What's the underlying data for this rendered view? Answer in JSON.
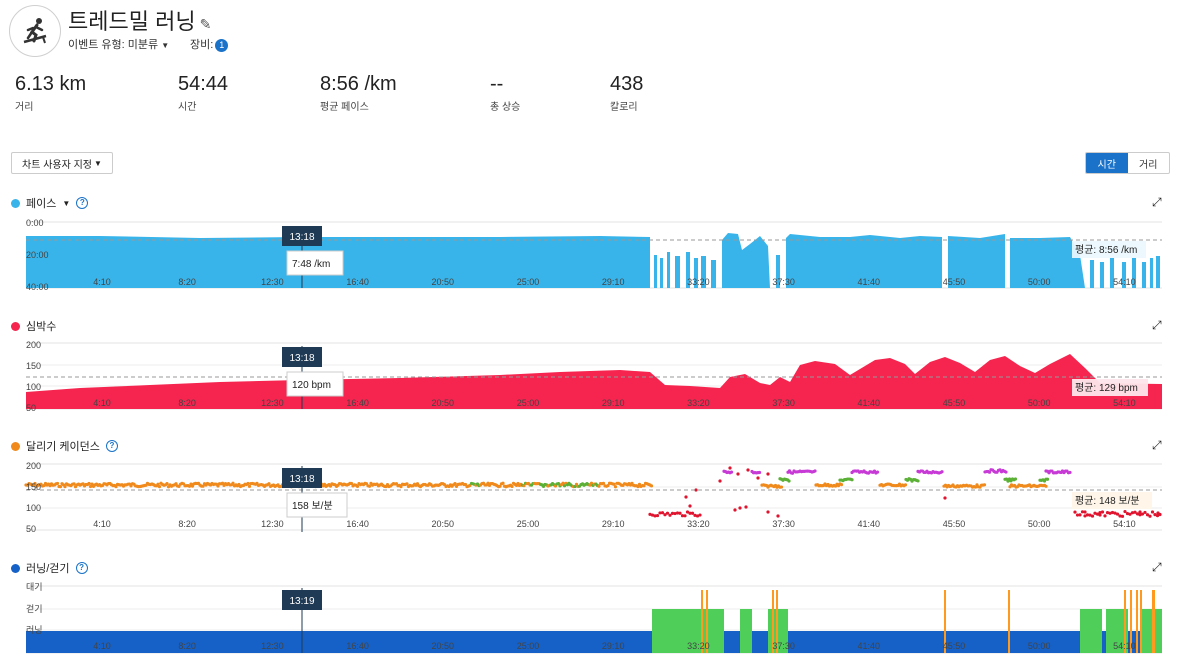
{
  "header": {
    "title": "트레드밀 러닝",
    "event_type_label": "이벤트 유형:",
    "event_type_value": "미분류",
    "gear_label": "장비:",
    "gear_count": "1"
  },
  "stats": [
    {
      "value": "6.13 km",
      "label": "거리"
    },
    {
      "value": "54:44",
      "label": "시간"
    },
    {
      "value": "8:56 /km",
      "label": "평균 페이스"
    },
    {
      "value": "--",
      "label": "총 상승"
    },
    {
      "value": "438",
      "label": "칼로리"
    }
  ],
  "controls": {
    "customize_label": "차트 사용자 지정",
    "time_label": "시간",
    "distance_label": "거리"
  },
  "x_ticks": [
    "4:10",
    "8:20",
    "12:30",
    "16:40",
    "20:50",
    "25:00",
    "29:10",
    "33:20",
    "37:30",
    "41:40",
    "45:50",
    "50:00",
    "54:10"
  ],
  "colors": {
    "pace": "#39b4ea",
    "hr": "#f5254f",
    "cad_orange": "#f08a1c",
    "cad_green": "#5bb036",
    "cad_purple": "#c73ad6",
    "cad_red": "#e0142e",
    "run": "#1561c8",
    "walk": "#4fcf5a",
    "idle": "#ff9a1f",
    "tooltip_bg": "#1e3a55"
  },
  "charts": {
    "pace": {
      "title": "페이스",
      "y_ticks": [
        "0:00",
        "20:00",
        "40:00"
      ],
      "cursor_time": "13:18",
      "cursor_value": "7:48 /km",
      "avg_label": "평균: 8:56 /km"
    },
    "hr": {
      "title": "심박수",
      "y_ticks": [
        "200",
        "150",
        "100",
        "50"
      ],
      "cursor_time": "13:18",
      "cursor_value": "120 bpm",
      "avg_label": "평균: 129 bpm"
    },
    "cadence": {
      "title": "달리기 케이던스",
      "y_ticks": [
        "200",
        "150",
        "100",
        "50"
      ],
      "cursor_time": "13:18",
      "cursor_value": "158 보/분",
      "avg_label": "평균: 148 보/분"
    },
    "runwalk": {
      "title": "러닝/걷기",
      "y_ticks": [
        "대기",
        "걷기",
        "러닝"
      ],
      "cursor_time": "13:19"
    }
  }
}
